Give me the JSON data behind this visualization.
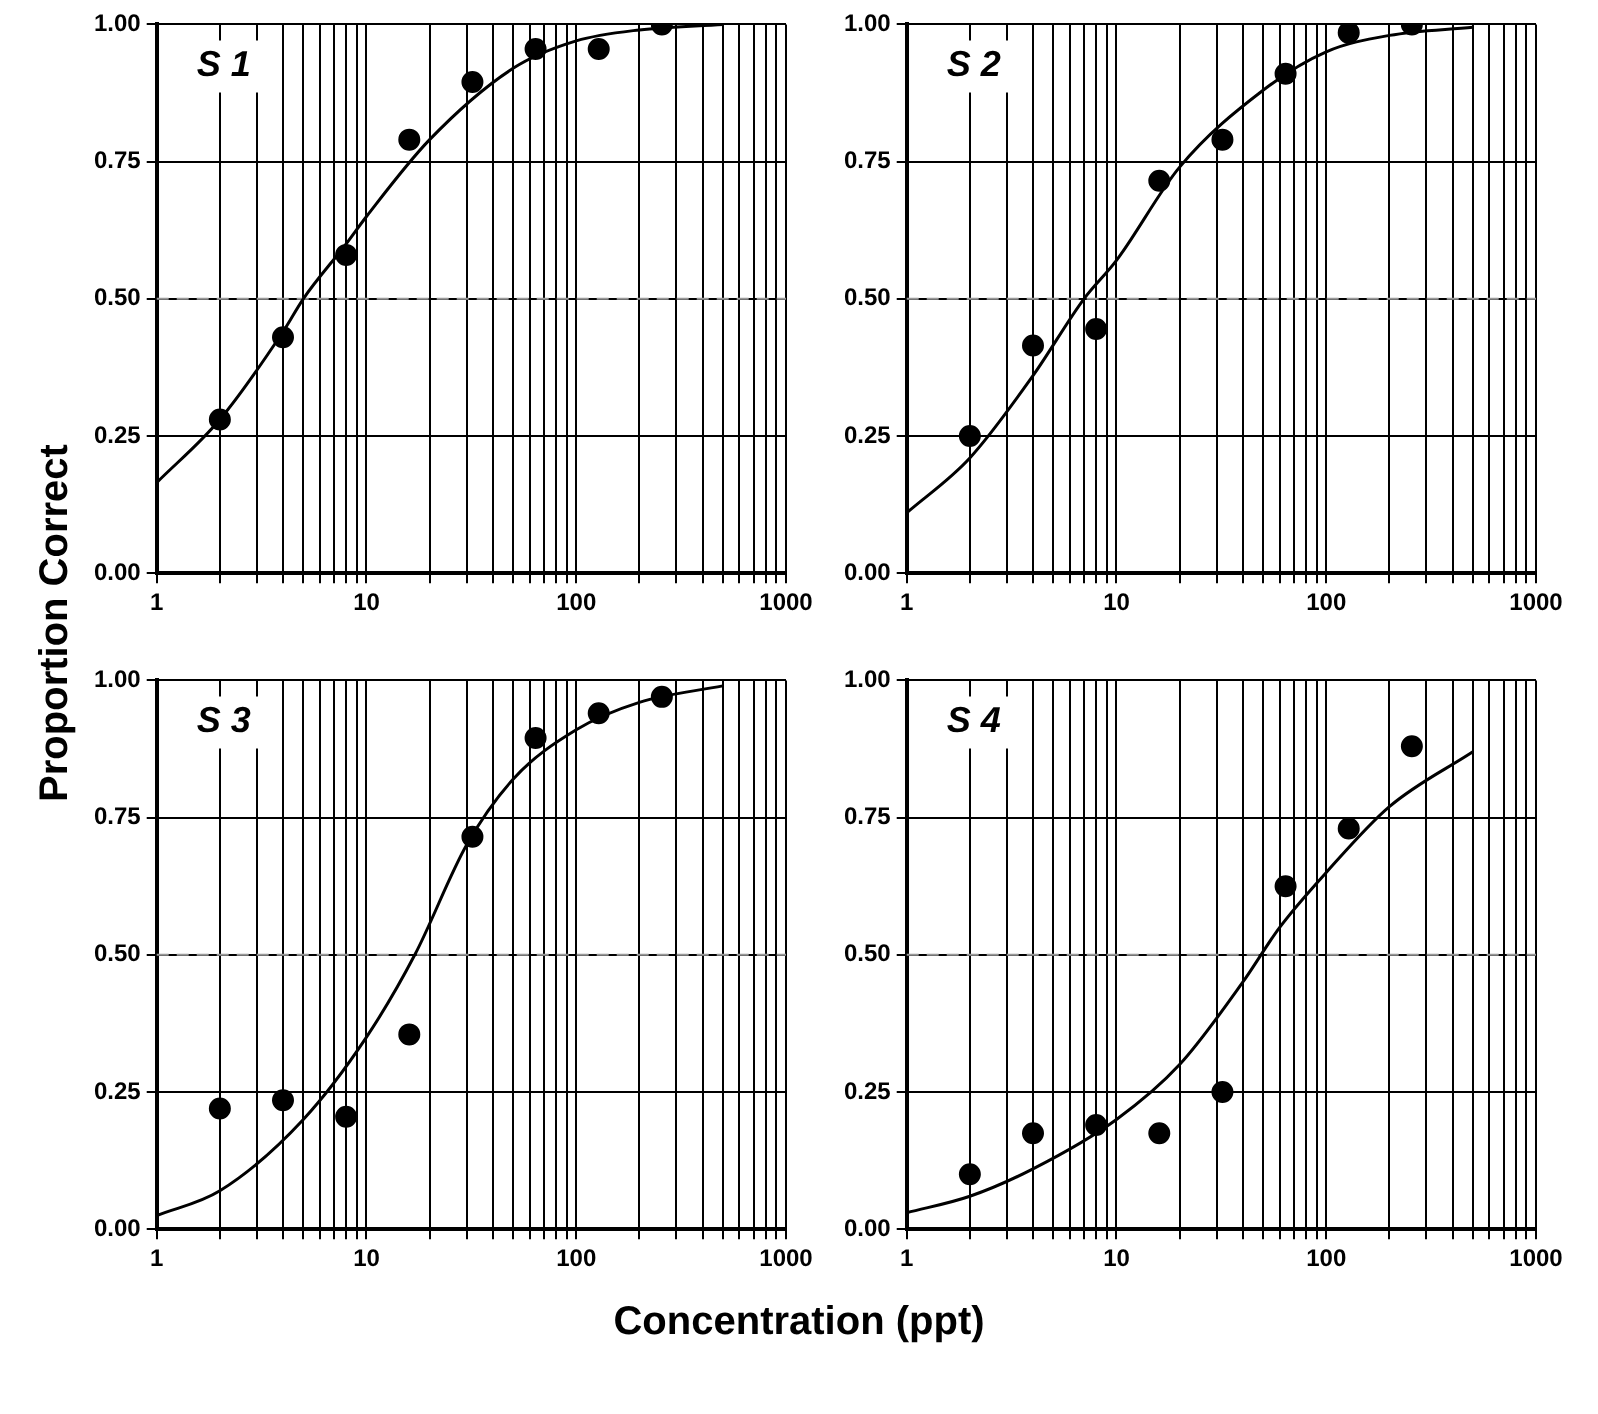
{
  "chart_data": [
    {
      "type": "scatter",
      "ylabel": "Proportion Correct",
      "xlabel": "Concentration (ppt)",
      "annotations": [
        "S 1"
      ],
      "log": "x",
      "grid": true,
      "legend": false,
      "marker": "circle",
      "xlim": [
        1,
        1000
      ],
      "ylim": [
        0,
        1
      ],
      "xticks": [
        1,
        {
          "value": 2,
          "label": null
        },
        {
          "value": 3,
          "label": null
        },
        {
          "value": 4,
          "label": null
        },
        {
          "value": 5,
          "label": null
        },
        {
          "value": 6,
          "label": null
        },
        {
          "value": 7,
          "label": null
        },
        {
          "value": 8,
          "label": null
        },
        {
          "value": 9,
          "label": null
        },
        10,
        {
          "value": 20,
          "label": null
        },
        {
          "value": 30,
          "label": null
        },
        {
          "value": 40,
          "label": null
        },
        {
          "value": 50,
          "label": null
        },
        {
          "value": 60,
          "label": null
        },
        {
          "value": 70,
          "label": null
        },
        {
          "value": 80,
          "label": null
        },
        {
          "value": 90,
          "label": null
        },
        100,
        {
          "value": 200,
          "label": null
        },
        {
          "value": 300,
          "label": null
        },
        {
          "value": 400,
          "label": null
        },
        {
          "value": 500,
          "label": null
        },
        {
          "value": 600,
          "label": null
        },
        {
          "value": 700,
          "label": null
        },
        {
          "value": 800,
          "label": null
        },
        {
          "value": 900,
          "label": null
        },
        1000
      ],
      "yticks": [
        {
          "value": 0,
          "label": "0.00"
        },
        {
          "value": 0.25,
          "label": "0.25"
        },
        {
          "value": 0.5,
          "label": "0.50"
        },
        {
          "value": 0.75,
          "label": "0.75"
        },
        {
          "value": 1,
          "label": "1.00"
        }
      ],
      "ref_lines": [
        {
          "axis": "y",
          "value": 0.5,
          "color": "#999999",
          "line_style": "dashed"
        }
      ],
      "series": [
        {
          "type": "scatter",
          "color": "#000000",
          "x": [
            2,
            4,
            8,
            16,
            32,
            64,
            128,
            256
          ],
          "values": [
            0.28,
            0.43,
            0.58,
            0.79,
            0.895,
            0.955,
            0.955,
            1.0
          ]
        },
        {
          "type": "line",
          "color": "#000000",
          "marker": "none",
          "x": [
            1,
            2,
            4,
            5,
            8,
            10,
            20,
            50,
            100,
            200,
            500
          ],
          "values": [
            0.165,
            0.28,
            0.44,
            0.5,
            0.6,
            0.65,
            0.79,
            0.92,
            0.97,
            0.99,
            1.0
          ]
        }
      ]
    },
    {
      "type": "scatter",
      "annotations": [
        "S 2"
      ],
      "log": "x",
      "grid": true,
      "legend": false,
      "marker": "circle",
      "xlim": [
        1,
        1000
      ],
      "ylim": [
        0,
        1
      ],
      "xticks": [
        1,
        {
          "value": 2,
          "label": null
        },
        {
          "value": 3,
          "label": null
        },
        {
          "value": 4,
          "label": null
        },
        {
          "value": 5,
          "label": null
        },
        {
          "value": 6,
          "label": null
        },
        {
          "value": 7,
          "label": null
        },
        {
          "value": 8,
          "label": null
        },
        {
          "value": 9,
          "label": null
        },
        10,
        {
          "value": 20,
          "label": null
        },
        {
          "value": 30,
          "label": null
        },
        {
          "value": 40,
          "label": null
        },
        {
          "value": 50,
          "label": null
        },
        {
          "value": 60,
          "label": null
        },
        {
          "value": 70,
          "label": null
        },
        {
          "value": 80,
          "label": null
        },
        {
          "value": 90,
          "label": null
        },
        100,
        {
          "value": 200,
          "label": null
        },
        {
          "value": 300,
          "label": null
        },
        {
          "value": 400,
          "label": null
        },
        {
          "value": 500,
          "label": null
        },
        {
          "value": 600,
          "label": null
        },
        {
          "value": 700,
          "label": null
        },
        {
          "value": 800,
          "label": null
        },
        {
          "value": 900,
          "label": null
        },
        1000
      ],
      "yticks": [
        {
          "value": 0,
          "label": "0.00"
        },
        {
          "value": 0.25,
          "label": "0.25"
        },
        {
          "value": 0.5,
          "label": "0.50"
        },
        {
          "value": 0.75,
          "label": "0.75"
        },
        {
          "value": 1,
          "label": "1.00"
        }
      ],
      "ref_lines": [
        {
          "axis": "y",
          "value": 0.5,
          "color": "#999999",
          "line_style": "dashed"
        }
      ],
      "series": [
        {
          "type": "scatter",
          "color": "#000000",
          "x": [
            2,
            4,
            8,
            16,
            32,
            64,
            128,
            256
          ],
          "values": [
            0.25,
            0.415,
            0.445,
            0.715,
            0.79,
            0.91,
            0.985,
            1.0
          ]
        },
        {
          "type": "line",
          "color": "#000000",
          "marker": "none",
          "x": [
            1,
            2,
            4,
            7,
            10,
            20,
            50,
            100,
            200,
            500
          ],
          "values": [
            0.11,
            0.21,
            0.36,
            0.5,
            0.57,
            0.74,
            0.88,
            0.95,
            0.98,
            0.995
          ]
        }
      ]
    },
    {
      "type": "scatter",
      "annotations": [
        "S 3"
      ],
      "log": "x",
      "grid": true,
      "legend": false,
      "marker": "circle",
      "xlim": [
        1,
        1000
      ],
      "ylim": [
        0,
        1
      ],
      "xticks": [
        1,
        {
          "value": 2,
          "label": null
        },
        {
          "value": 3,
          "label": null
        },
        {
          "value": 4,
          "label": null
        },
        {
          "value": 5,
          "label": null
        },
        {
          "value": 6,
          "label": null
        },
        {
          "value": 7,
          "label": null
        },
        {
          "value": 8,
          "label": null
        },
        {
          "value": 9,
          "label": null
        },
        10,
        {
          "value": 20,
          "label": null
        },
        {
          "value": 30,
          "label": null
        },
        {
          "value": 40,
          "label": null
        },
        {
          "value": 50,
          "label": null
        },
        {
          "value": 60,
          "label": null
        },
        {
          "value": 70,
          "label": null
        },
        {
          "value": 80,
          "label": null
        },
        {
          "value": 90,
          "label": null
        },
        100,
        {
          "value": 200,
          "label": null
        },
        {
          "value": 300,
          "label": null
        },
        {
          "value": 400,
          "label": null
        },
        {
          "value": 500,
          "label": null
        },
        {
          "value": 600,
          "label": null
        },
        {
          "value": 700,
          "label": null
        },
        {
          "value": 800,
          "label": null
        },
        {
          "value": 900,
          "label": null
        },
        1000
      ],
      "yticks": [
        {
          "value": 0,
          "label": "0.00"
        },
        {
          "value": 0.25,
          "label": "0.25"
        },
        {
          "value": 0.5,
          "label": "0.50"
        },
        {
          "value": 0.75,
          "label": "0.75"
        },
        {
          "value": 1,
          "label": "1.00"
        }
      ],
      "ref_lines": [
        {
          "axis": "y",
          "value": 0.5,
          "color": "#999999",
          "line_style": "dashed"
        }
      ],
      "series": [
        {
          "type": "scatter",
          "color": "#000000",
          "x": [
            2,
            4,
            8,
            16,
            32,
            64,
            128,
            256
          ],
          "values": [
            0.22,
            0.235,
            0.205,
            0.355,
            0.715,
            0.895,
            0.94,
            0.97
          ]
        },
        {
          "type": "line",
          "color": "#000000",
          "marker": "none",
          "x": [
            1,
            2,
            5,
            10,
            17,
            30,
            50,
            100,
            200,
            500
          ],
          "values": [
            0.025,
            0.07,
            0.2,
            0.35,
            0.5,
            0.7,
            0.82,
            0.91,
            0.96,
            0.99
          ]
        }
      ]
    },
    {
      "type": "scatter",
      "annotations": [
        "S 4"
      ],
      "log": "x",
      "grid": true,
      "legend": false,
      "marker": "circle",
      "xlim": [
        1,
        1000
      ],
      "ylim": [
        0,
        1
      ],
      "xticks": [
        1,
        {
          "value": 2,
          "label": null
        },
        {
          "value": 3,
          "label": null
        },
        {
          "value": 4,
          "label": null
        },
        {
          "value": 5,
          "label": null
        },
        {
          "value": 6,
          "label": null
        },
        {
          "value": 7,
          "label": null
        },
        {
          "value": 8,
          "label": null
        },
        {
          "value": 9,
          "label": null
        },
        10,
        {
          "value": 20,
          "label": null
        },
        {
          "value": 30,
          "label": null
        },
        {
          "value": 40,
          "label": null
        },
        {
          "value": 50,
          "label": null
        },
        {
          "value": 60,
          "label": null
        },
        {
          "value": 70,
          "label": null
        },
        {
          "value": 80,
          "label": null
        },
        {
          "value": 90,
          "label": null
        },
        100,
        {
          "value": 200,
          "label": null
        },
        {
          "value": 300,
          "label": null
        },
        {
          "value": 400,
          "label": null
        },
        {
          "value": 500,
          "label": null
        },
        {
          "value": 600,
          "label": null
        },
        {
          "value": 700,
          "label": null
        },
        {
          "value": 800,
          "label": null
        },
        {
          "value": 900,
          "label": null
        },
        1000
      ],
      "yticks": [
        {
          "value": 0,
          "label": "0.00"
        },
        {
          "value": 0.25,
          "label": "0.25"
        },
        {
          "value": 0.5,
          "label": "0.50"
        },
        {
          "value": 0.75,
          "label": "0.75"
        },
        {
          "value": 1,
          "label": "1.00"
        }
      ],
      "ref_lines": [
        {
          "axis": "y",
          "value": 0.5,
          "color": "#999999",
          "line_style": "dashed"
        }
      ],
      "series": [
        {
          "type": "scatter",
          "color": "#000000",
          "x": [
            2,
            4,
            8,
            16,
            32,
            64,
            128,
            256
          ],
          "values": [
            0.1,
            0.175,
            0.19,
            0.175,
            0.25,
            0.625,
            0.73,
            0.88
          ]
        },
        {
          "type": "line",
          "color": "#000000",
          "marker": "none",
          "x": [
            1,
            2,
            4,
            10,
            20,
            40,
            60,
            100,
            200,
            500
          ],
          "values": [
            0.03,
            0.06,
            0.11,
            0.2,
            0.3,
            0.45,
            0.55,
            0.65,
            0.77,
            0.87
          ]
        }
      ]
    }
  ]
}
